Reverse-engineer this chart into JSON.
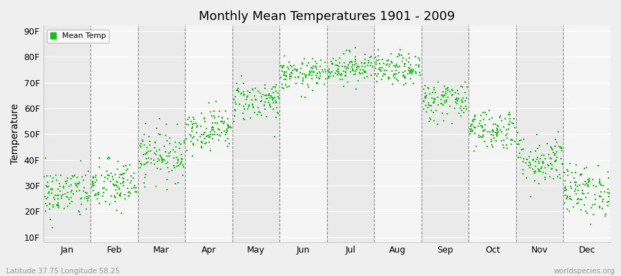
{
  "title": "Monthly Mean Temperatures 1901 - 2009",
  "ylabel": "Temperature",
  "month_labels": [
    "Jan",
    "Feb",
    "Mar",
    "Apr",
    "May",
    "Jun",
    "Jul",
    "Aug",
    "Sep",
    "Oct",
    "Nov",
    "Dec"
  ],
  "ytick_labels": [
    "10F",
    "20F",
    "30F",
    "40F",
    "50F",
    "60F",
    "70F",
    "80F",
    "90F"
  ],
  "ytick_values": [
    10,
    20,
    30,
    40,
    50,
    60,
    70,
    80,
    90
  ],
  "ylim": [
    8,
    92
  ],
  "legend_label": "Mean Temp",
  "dot_color": "#00CC00",
  "footer_left": "Latitude 37.75 Longitude 58.25",
  "footer_right": "worldspecies.org",
  "monthly_means": [
    27,
    30,
    42,
    52,
    63,
    73,
    76,
    75,
    63,
    52,
    40,
    28
  ],
  "monthly_stds": [
    5,
    5,
    5,
    4,
    4,
    3,
    3,
    3,
    4,
    4,
    5,
    5
  ],
  "n_years": 109,
  "start_year": 1901,
  "bg_color": "#EFEFEF",
  "band_colors": [
    "#EAEAEA",
    "#F5F5F5"
  ]
}
